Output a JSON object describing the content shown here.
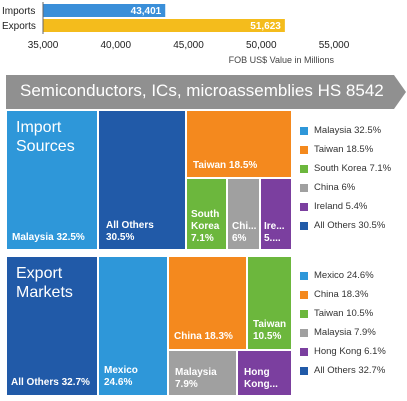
{
  "chart_data": [
    {
      "type": "bar",
      "orientation": "horizontal",
      "categories": [
        "Imports",
        "Exports"
      ],
      "values": [
        43401,
        51623
      ],
      "value_labels": [
        "43,401",
        "51,623"
      ],
      "colors": [
        "#3a8fd9",
        "#f4bc1c"
      ],
      "xlim": [
        35000,
        55000
      ],
      "ticks": [
        "35,000",
        "40,000",
        "45,000",
        "50,000",
        "55,000"
      ],
      "xlabel": "FOB US$ Value in Millions"
    },
    {
      "type": "treemap",
      "title": "Import Sources",
      "items": [
        {
          "name": "Malaysia",
          "value": 32.5,
          "color": "#2e97d9",
          "label": "Malaysia 32.5%",
          "legend": "Malaysia 32.5%"
        },
        {
          "name": "All Others",
          "value": 30.5,
          "color": "#215aa8",
          "label": "All Others\n30.5%",
          "legend": "All Others 30.5%"
        },
        {
          "name": "Taiwan",
          "value": 18.5,
          "color": "#f4891e",
          "label": "Taiwan 18.5%",
          "legend": "Taiwan 18.5%"
        },
        {
          "name": "South Korea",
          "value": 7.1,
          "color": "#6cb73d",
          "label": "South\nKorea\n7.1%",
          "legend": "South Korea 7.1%"
        },
        {
          "name": "China",
          "value": 6.0,
          "color": "#a0a0a0",
          "label": "Chi...\n6%",
          "legend": "China 6%"
        },
        {
          "name": "Ireland",
          "value": 5.4,
          "color": "#7b3f9f",
          "label": "Ire...\n5....",
          "legend": "Ireland 5.4%"
        }
      ]
    },
    {
      "type": "treemap",
      "title": "Export Markets",
      "items": [
        {
          "name": "All Others",
          "value": 32.7,
          "color": "#215aa8",
          "label": "All Others 32.7%",
          "legend": "All Others 32.7%"
        },
        {
          "name": "Mexico",
          "value": 24.6,
          "color": "#2e97d9",
          "label": "Mexico\n24.6%",
          "legend": "Mexico 24.6%"
        },
        {
          "name": "China",
          "value": 18.3,
          "color": "#f4891e",
          "label": "China 18.3%",
          "legend": "China 18.3%"
        },
        {
          "name": "Taiwan",
          "value": 10.5,
          "color": "#6cb73d",
          "label": "Taiwan\n10.5%",
          "legend": "Taiwan 10.5%"
        },
        {
          "name": "Malaysia",
          "value": 7.9,
          "color": "#a0a0a0",
          "label": "Malaysia\n7.9%",
          "legend": "Malaysia 7.9%"
        },
        {
          "name": "Hong Kong",
          "value": 6.1,
          "color": "#7b3f9f",
          "label": "Hong\nKong...",
          "legend": "Hong Kong 6.1%"
        }
      ]
    }
  ],
  "banner": {
    "text": "Semiconductors, ICs, microassemblies HS 8542",
    "color": "#909090"
  },
  "imports_panel": {
    "title": "Import\nSources",
    "legend_order": [
      0,
      2,
      3,
      4,
      5,
      1
    ]
  },
  "exports_panel": {
    "title": "Export\nMarkets",
    "legend_order": [
      1,
      2,
      3,
      4,
      5,
      0
    ]
  }
}
